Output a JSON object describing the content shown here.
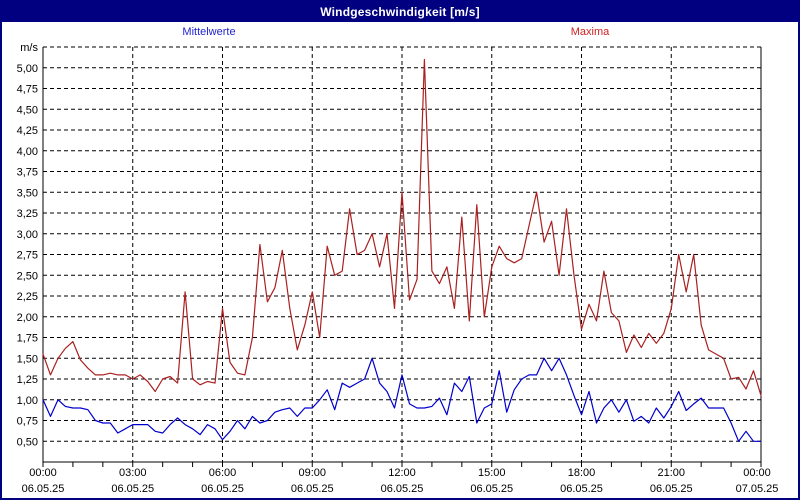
{
  "window": {
    "title": "Windgeschwindigkeit [m/s]",
    "titlebar_color": "#000080",
    "titlebar_text_color": "#ffffff"
  },
  "legend": {
    "mittelwerte": {
      "label": "Mittelwerte",
      "color": "#2222cc"
    },
    "maxima": {
      "label": "Maxima",
      "color": "#cc2222"
    }
  },
  "chart_data": {
    "type": "line",
    "title": "Windgeschwindigkeit [m/s]",
    "grid": {
      "style": "dashed",
      "color": "#000000"
    },
    "axis_color": "#000000",
    "label_color": "#000000",
    "y_axis": {
      "unit_label": "m/s",
      "min": 0.25,
      "max": 5.25,
      "tick_values": [
        0.5,
        0.75,
        1.0,
        1.25,
        1.5,
        1.75,
        2.0,
        2.25,
        2.5,
        2.75,
        3.0,
        3.25,
        3.5,
        3.75,
        4.0,
        4.25,
        4.5,
        4.75,
        5.0
      ],
      "tick_labels": [
        "0,50",
        "0,75",
        "1,00",
        "1,25",
        "1,50",
        "1,75",
        "2,00",
        "2,25",
        "2,50",
        "2,75",
        "3,00",
        "3,25",
        "3,50",
        "3,75",
        "4,00",
        "4,25",
        "4,50",
        "4,75",
        "5,00"
      ]
    },
    "x_axis": {
      "hours_total": 24,
      "minor_tick_every_hours": 1,
      "labels": [
        {
          "hour": 0,
          "time": "00:00",
          "date": "06.05.25"
        },
        {
          "hour": 3,
          "time": "03:00",
          "date": "06.05.25"
        },
        {
          "hour": 6,
          "time": "06:00",
          "date": "06.05.25"
        },
        {
          "hour": 9,
          "time": "09:00",
          "date": "06.05.25"
        },
        {
          "hour": 12,
          "time": "12:00",
          "date": "06.05.25"
        },
        {
          "hour": 15,
          "time": "15:00",
          "date": "06.05.25"
        },
        {
          "hour": 18,
          "time": "18:00",
          "date": "06.05.25"
        },
        {
          "hour": 21,
          "time": "21:00",
          "date": "06.05.25"
        },
        {
          "hour": 24,
          "time": "00:00",
          "date": "07.05.25"
        }
      ]
    },
    "series": [
      {
        "name": "Mittelwerte",
        "color": "#0000cd",
        "step_minutes": 15,
        "values": [
          1.0,
          0.8,
          1.0,
          0.92,
          0.9,
          0.9,
          0.88,
          0.75,
          0.72,
          0.72,
          0.6,
          0.65,
          0.7,
          0.7,
          0.7,
          0.62,
          0.6,
          0.7,
          0.78,
          0.7,
          0.65,
          0.58,
          0.7,
          0.65,
          0.52,
          0.62,
          0.75,
          0.65,
          0.8,
          0.72,
          0.75,
          0.85,
          0.88,
          0.9,
          0.8,
          0.9,
          0.9,
          1.0,
          1.12,
          0.88,
          1.2,
          1.15,
          1.2,
          1.25,
          1.5,
          1.2,
          1.1,
          0.9,
          1.3,
          0.95,
          0.9,
          0.9,
          0.92,
          1.02,
          0.82,
          1.2,
          1.1,
          1.28,
          0.72,
          0.9,
          0.95,
          1.35,
          0.85,
          1.12,
          1.25,
          1.3,
          1.3,
          1.5,
          1.35,
          1.5,
          1.3,
          1.05,
          0.82,
          1.1,
          0.72,
          0.9,
          1.0,
          0.85,
          1.0,
          0.74,
          0.8,
          0.72,
          0.9,
          0.78,
          0.92,
          1.1,
          0.87,
          0.95,
          1.02,
          0.9,
          0.9,
          0.9,
          0.72,
          0.5,
          0.62,
          0.5,
          0.5
        ]
      },
      {
        "name": "Maxima",
        "color": "#aa2020",
        "step_minutes": 15,
        "values": [
          1.55,
          1.3,
          1.5,
          1.62,
          1.7,
          1.48,
          1.38,
          1.3,
          1.3,
          1.32,
          1.3,
          1.3,
          1.25,
          1.3,
          1.22,
          1.1,
          1.25,
          1.28,
          1.2,
          2.3,
          1.25,
          1.18,
          1.22,
          1.2,
          2.1,
          1.45,
          1.32,
          1.3,
          1.75,
          2.87,
          2.18,
          2.35,
          2.8,
          2.1,
          1.6,
          1.9,
          2.3,
          1.75,
          2.85,
          2.5,
          2.55,
          3.3,
          2.75,
          2.8,
          3.0,
          2.6,
          3.0,
          2.1,
          3.5,
          2.2,
          2.45,
          5.1,
          2.55,
          2.4,
          2.6,
          2.1,
          3.2,
          1.95,
          3.35,
          2.0,
          2.6,
          2.85,
          2.7,
          2.65,
          2.7,
          3.1,
          3.5,
          2.9,
          3.15,
          2.5,
          3.3,
          2.5,
          1.85,
          2.15,
          1.95,
          2.55,
          2.05,
          1.95,
          1.57,
          1.78,
          1.63,
          1.8,
          1.68,
          1.8,
          2.1,
          2.75,
          2.3,
          2.75,
          1.9,
          1.6,
          1.55,
          1.5,
          1.25,
          1.27,
          1.13,
          1.35,
          1.05
        ]
      }
    ]
  }
}
